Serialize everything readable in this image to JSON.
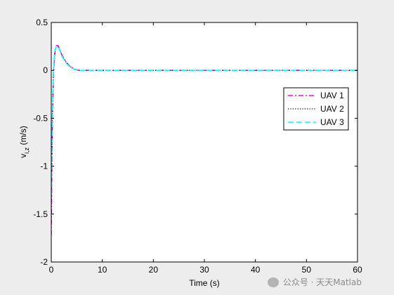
{
  "chart_data": {
    "type": "line",
    "title": "",
    "xlabel": "Time (s)",
    "ylabel_main": "v",
    "ylabel_sub": "i,z",
    "ylabel_unit": " (m/s)",
    "xlim": [
      0,
      60
    ],
    "ylim": [
      -2,
      0.5
    ],
    "xticks": [
      0,
      10,
      20,
      30,
      40,
      50,
      60
    ],
    "yticks": [
      0.5,
      0,
      -0.5,
      -1,
      -1.5,
      -2
    ],
    "ytick_labels": [
      "0.5",
      "0",
      "-0.5",
      "-1",
      "-1.5",
      "-2"
    ],
    "grid": false,
    "legend_position": "right",
    "series": [
      {
        "name": "UAV 1",
        "color": "#ff00ff",
        "style": "dashdot",
        "x": [
          0,
          0.1,
          0.25,
          0.45,
          0.7,
          1.0,
          1.3,
          1.6,
          2.0,
          2.5,
          3.0,
          3.5,
          4.0,
          4.5,
          5.0,
          5.5,
          6,
          8,
          10,
          20,
          30,
          40,
          50,
          60
        ],
        "y": [
          -1.72,
          -1.1,
          -0.45,
          -0.02,
          0.18,
          0.26,
          0.26,
          0.23,
          0.17,
          0.12,
          0.08,
          0.05,
          0.03,
          0.015,
          0.005,
          0.0,
          0.0,
          0.0,
          0.0,
          0.0,
          0.0,
          0.0,
          0.0,
          0.0
        ]
      },
      {
        "name": "UAV 2",
        "color": "#000000",
        "style": "dotted",
        "x": [
          0,
          0.1,
          0.25,
          0.45,
          0.7,
          1.0,
          1.3,
          1.6,
          2.0,
          2.5,
          3.0,
          3.5,
          4.0,
          4.5,
          5.0,
          5.5,
          6,
          8,
          10,
          20,
          30,
          40,
          50,
          60
        ],
        "y": [
          -1.55,
          -1.0,
          -0.4,
          0.0,
          0.19,
          0.25,
          0.25,
          0.22,
          0.17,
          0.12,
          0.08,
          0.05,
          0.03,
          0.015,
          0.005,
          0.0,
          0.0,
          0.0,
          0.0,
          0.0,
          0.0,
          0.0,
          0.0,
          0.0
        ]
      },
      {
        "name": "UAV 3",
        "color": "#00ffff",
        "style": "dashed",
        "x": [
          0,
          0.1,
          0.25,
          0.45,
          0.7,
          1.0,
          1.3,
          1.6,
          2.0,
          2.5,
          3.0,
          3.5,
          4.0,
          4.5,
          5.0,
          5.5,
          6,
          8,
          10,
          20,
          30,
          40,
          50,
          60
        ],
        "y": [
          -1.3,
          -0.85,
          -0.35,
          0.02,
          0.2,
          0.25,
          0.25,
          0.22,
          0.16,
          0.11,
          0.07,
          0.045,
          0.025,
          0.012,
          0.004,
          0.0,
          0.0,
          0.0,
          0.0,
          0.0,
          0.0,
          0.0,
          0.0,
          0.0
        ]
      }
    ]
  },
  "watermark": {
    "text": "公众号 · 天天Matlab",
    "icon": "wechat-icon"
  }
}
